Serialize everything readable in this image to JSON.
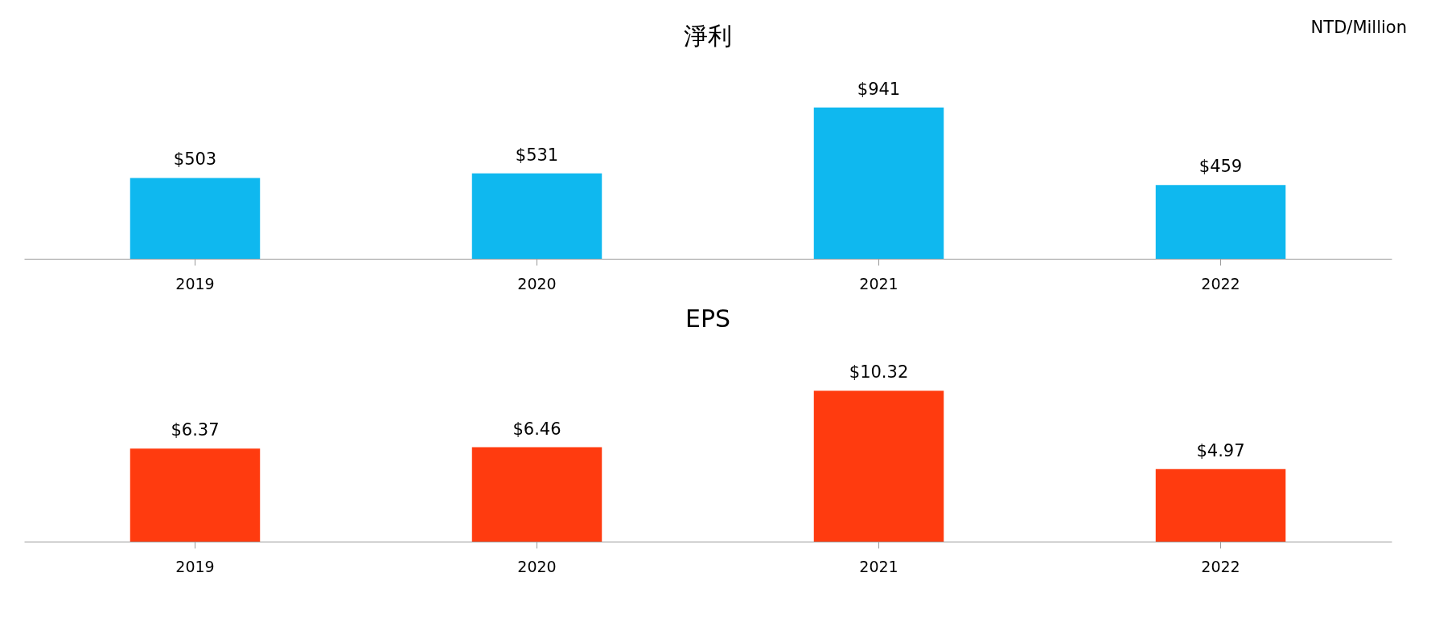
{
  "chart_data": [
    {
      "type": "bar",
      "title": "淨利",
      "annotations": [
        "NTD/Million"
      ],
      "categories": [
        "2019",
        "2020",
        "2021",
        "2022"
      ],
      "values": [
        503,
        531,
        941,
        459
      ],
      "value_labels": [
        "$503",
        "$531",
        "$941",
        "$459"
      ],
      "color": "#0fb8ef"
    },
    {
      "type": "bar",
      "title": "EPS",
      "categories": [
        "2019",
        "2020",
        "2021",
        "2022"
      ],
      "values": [
        6.37,
        6.46,
        10.32,
        4.97
      ],
      "value_labels": [
        "$6.37",
        "$6.46",
        "$10.32",
        "$4.97"
      ],
      "color": "#ff3b0f"
    }
  ]
}
